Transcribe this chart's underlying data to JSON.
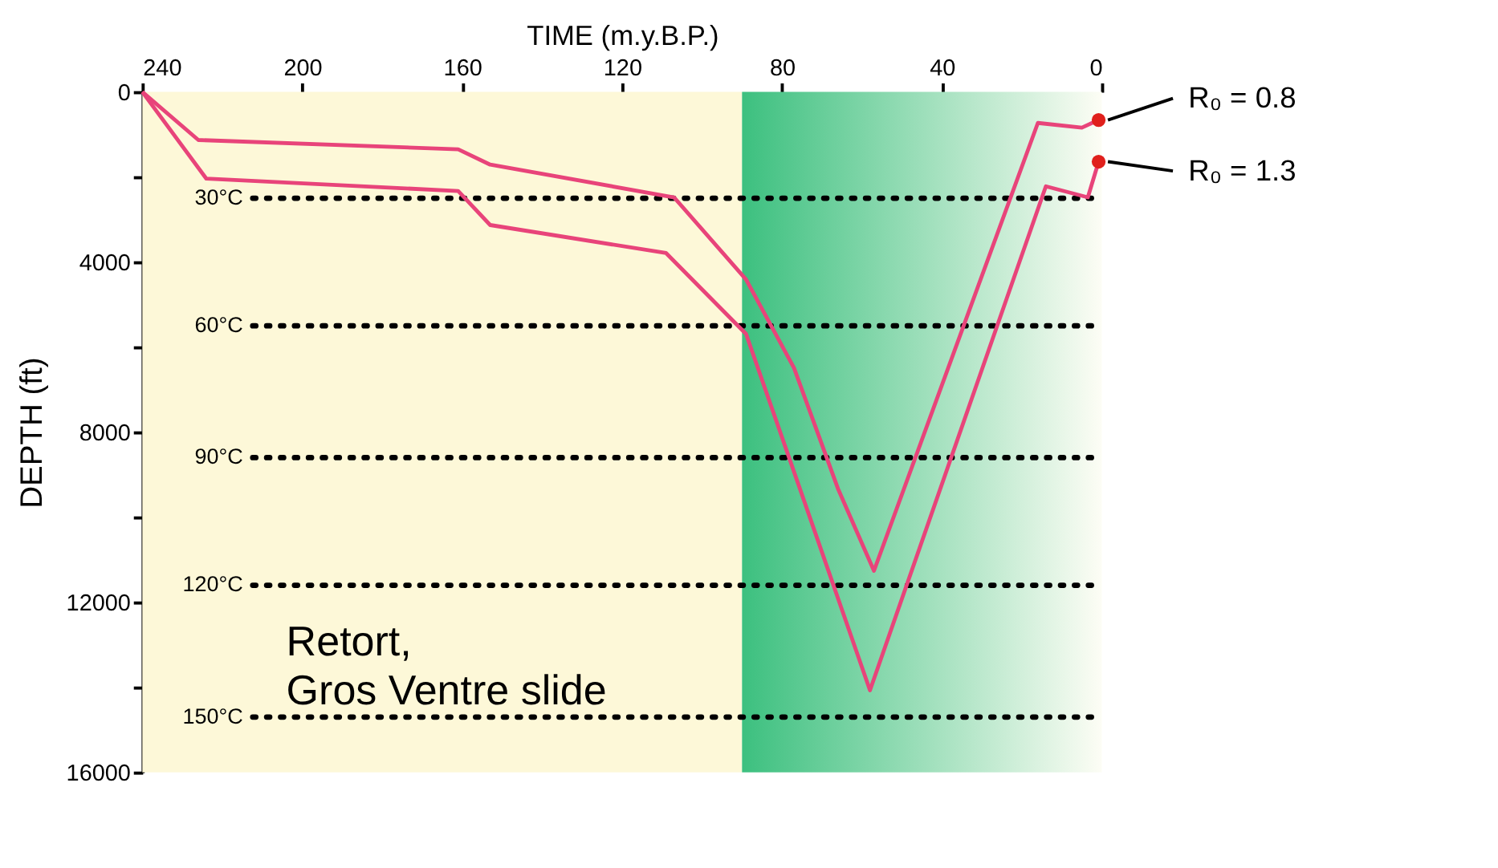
{
  "chart_data": {
    "type": "line",
    "xlabel": "TIME (m.y.B.P.)",
    "ylabel": "DEPTH (ft)",
    "xlim": [
      240,
      0
    ],
    "xticks": [
      240,
      200,
      160,
      120,
      80,
      40,
      0
    ],
    "ylim": [
      16000,
      0
    ],
    "yticks": [
      0,
      {
        "value": 2000,
        "label": null
      },
      4000,
      {
        "value": 6000,
        "label": null
      },
      8000,
      {
        "value": 10000,
        "label": null
      },
      12000,
      {
        "value": 14000,
        "label": null
      },
      16000
    ],
    "grid": false,
    "line_style": "solid",
    "series": [
      {
        "color": "#e8447a",
        "x": [
          240,
          226,
          161,
          153,
          107,
          89,
          77,
          66,
          57,
          16,
          5,
          0.8
        ],
        "values": [
          0,
          1130,
          1350,
          1710,
          2480,
          4410,
          6490,
          9330,
          11260,
          730,
          840,
          660
        ]
      },
      {
        "color": "#e8447a",
        "x": [
          240,
          224,
          161,
          153,
          109,
          89,
          58,
          14,
          3.5,
          0.8
        ],
        "values": [
          0,
          2040,
          2330,
          3130,
          3790,
          5690,
          14070,
          2220,
          2480,
          1640
        ]
      },
      {
        "type": "scatter",
        "marker": "circle",
        "color": "#e0201c",
        "x": [
          0.8,
          0.8
        ],
        "values": [
          660,
          1640
        ]
      }
    ],
    "bands": [
      {
        "axis": "x",
        "from": 240,
        "to": 90,
        "color": "#fdf8d8"
      },
      {
        "axis": "x",
        "from": 90,
        "to": 0,
        "color": "#3cc07f"
      }
    ],
    "ref_lines": [
      {
        "axis": "y",
        "value": 2500,
        "label": "30°C",
        "line_style": "dotted",
        "color": "#000000"
      },
      {
        "axis": "y",
        "value": 5500,
        "label": "60°C",
        "line_style": "dotted",
        "color": "#000000"
      },
      {
        "axis": "y",
        "value": 8600,
        "label": "90°C",
        "line_style": "dotted",
        "color": "#000000"
      },
      {
        "axis": "y",
        "value": 11600,
        "label": "120°C",
        "line_style": "dotted",
        "color": "#000000"
      },
      {
        "axis": "y",
        "value": 14700,
        "label": "150°C",
        "line_style": "dotted",
        "color": "#000000"
      }
    ],
    "annotations": [
      {
        "text": "R₀ = 0.8",
        "x": 0.8,
        "y": 660
      },
      {
        "text": "R₀ = 1.3",
        "x": 0.8,
        "y": 1640
      },
      "Retort,\nGros Ventre slide"
    ]
  }
}
